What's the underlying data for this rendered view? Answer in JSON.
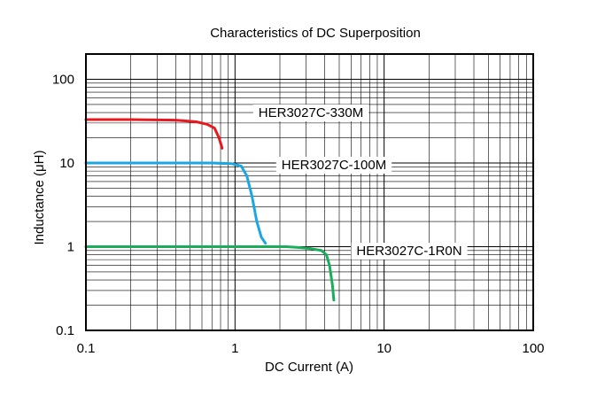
{
  "chart_data": {
    "type": "line",
    "title": "Characteristics of DC Superposition",
    "xlabel": "DC Current (A)",
    "ylabel": "Inductance  (μH)",
    "x_scale": "log",
    "y_scale": "log",
    "xlim": [
      0.1,
      100
    ],
    "ylim": [
      0.1,
      200
    ],
    "x_ticks": [
      {
        "value": 0.1,
        "label": "0.1"
      },
      {
        "value": 1,
        "label": "1"
      },
      {
        "value": 10,
        "label": "10"
      },
      {
        "value": 100,
        "label": "100"
      }
    ],
    "y_ticks": [
      {
        "value": 0.1,
        "label": "0.1"
      },
      {
        "value": 1,
        "label": "1"
      },
      {
        "value": 10,
        "label": "10"
      },
      {
        "value": 100,
        "label": "100"
      }
    ],
    "grid": true,
    "series": [
      {
        "name": "HER3027C-330M",
        "color": "#e8191e",
        "x": [
          0.1,
          0.2,
          0.4,
          0.55,
          0.65,
          0.73,
          0.78,
          0.82
        ],
        "y": [
          33,
          33,
          32.5,
          31,
          29,
          26,
          20,
          15
        ]
      },
      {
        "name": "HER3027C-100M",
        "color": "#1aa7e3",
        "x": [
          0.1,
          0.3,
          0.7,
          0.95,
          1.1,
          1.2,
          1.3,
          1.4,
          1.5,
          1.6
        ],
        "y": [
          10,
          10,
          10,
          9.8,
          9.2,
          7,
          4,
          2,
          1.3,
          1.1
        ]
      },
      {
        "name": "HER3027C-1R0N",
        "color": "#1aae5c",
        "x": [
          0.1,
          0.5,
          1.5,
          2.2,
          2.6,
          3.2,
          3.8,
          4.1,
          4.3,
          4.5,
          4.6
        ],
        "y": [
          1.0,
          1.0,
          1.0,
          1.0,
          0.98,
          0.95,
          0.9,
          0.8,
          0.6,
          0.35,
          0.23
        ]
      }
    ]
  }
}
